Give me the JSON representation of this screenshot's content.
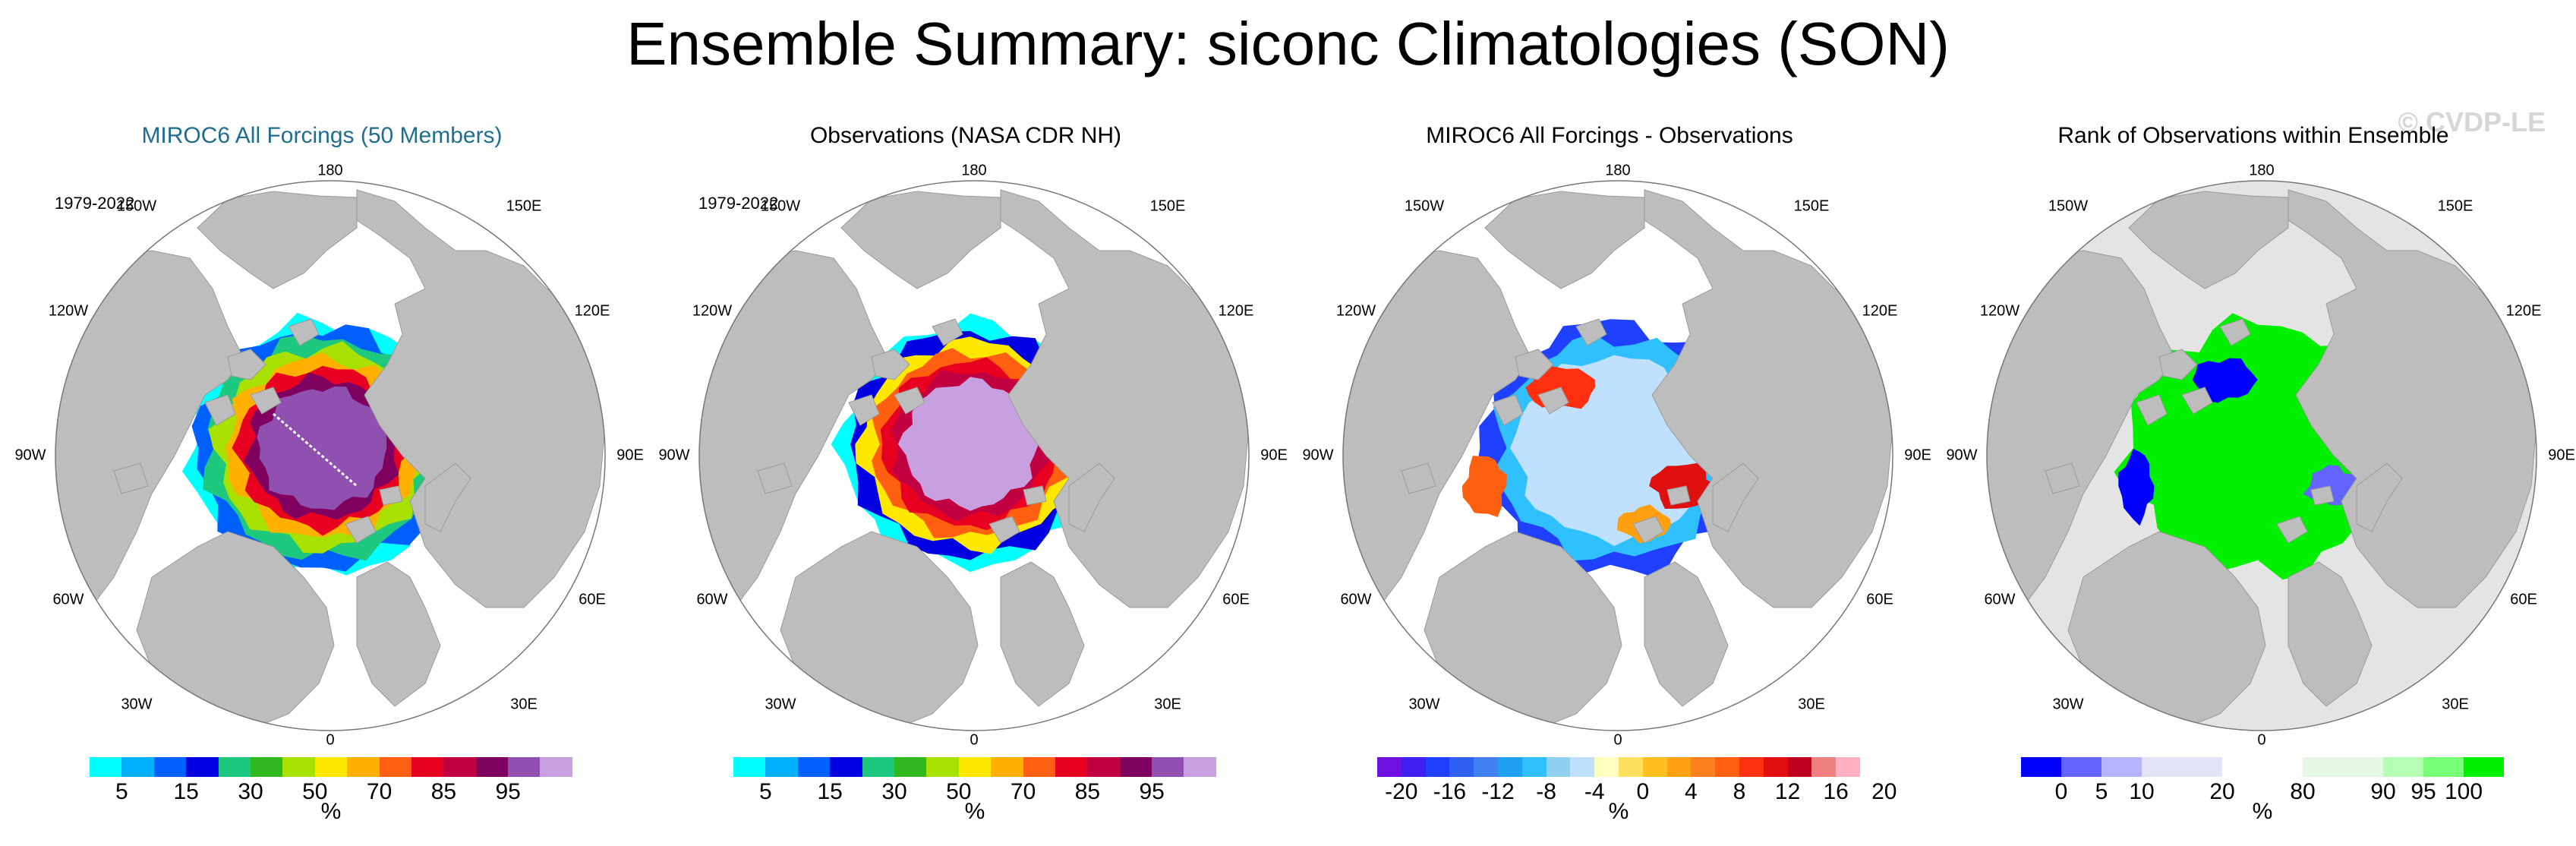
{
  "title": "Ensemble Summary: siconc Climatologies (SON)",
  "watermark": "© CVDP-LE",
  "longitude_labels": [
    "180",
    "150E",
    "120E",
    "90E",
    "60E",
    "30E",
    "0",
    "30W",
    "60W",
    "90W",
    "120W",
    "150W"
  ],
  "panels": [
    {
      "title": "MIROC6 All Forcings (50 Members)",
      "period": "1979-2022",
      "colorbar": {
        "colors": [
          "#00ffff",
          "#00b0ff",
          "#0060ff",
          "#0000e0",
          "#1ec87e",
          "#30b820",
          "#a8e000",
          "#ffe800",
          "#ffb000",
          "#ff6010",
          "#e80020",
          "#c00040",
          "#800060",
          "#9050b0",
          "#c8a0e0"
        ],
        "tick_labels": [
          "5",
          "15",
          "30",
          "50",
          "70",
          "85",
          "95"
        ],
        "unit": "%"
      }
    },
    {
      "title": "Observations (NASA CDR NH)",
      "period": "1979-2022",
      "colorbar": {
        "colors": [
          "#00ffff",
          "#00b0ff",
          "#0060ff",
          "#0000e0",
          "#1ec87e",
          "#30b820",
          "#a8e000",
          "#ffe800",
          "#ffb000",
          "#ff6010",
          "#e80020",
          "#c00040",
          "#800060",
          "#9050b0",
          "#c8a0e0"
        ],
        "tick_labels": [
          "5",
          "15",
          "30",
          "50",
          "70",
          "85",
          "95"
        ],
        "unit": "%"
      }
    },
    {
      "title": "MIROC6 All Forcings - Observations",
      "period": "",
      "colorbar": {
        "colors": [
          "#7010e0",
          "#4020f0",
          "#2040ff",
          "#3060f0",
          "#4080f0",
          "#20a0f0",
          "#30c0ff",
          "#90d0f0",
          "#c0e0ff",
          "#ffffc0",
          "#ffe060",
          "#ffc020",
          "#ffa010",
          "#ff8020",
          "#ff6010",
          "#ff3010",
          "#e01010",
          "#c00020",
          "#f08080",
          "#ffb0c0"
        ],
        "tick_labels": [
          "-20",
          "-16",
          "-12",
          "-8",
          "-4",
          "0",
          "4",
          "8",
          "12",
          "16",
          "20"
        ],
        "unit": "%"
      }
    },
    {
      "title": "Rank of Observations within Ensemble",
      "period": "",
      "colorbar": {
        "colors": [
          "#0000ff",
          "#6464ff",
          "#b4b4ff",
          "#e4e4f8",
          "#e4e4f8",
          "#ffffff",
          "#ffffff",
          "#e4f8e4",
          "#e4f8e4",
          "#b4ffb4",
          "#78ff78",
          "#00f000"
        ],
        "tick_labels": [
          "0",
          "5",
          "10",
          "20",
          "80",
          "90",
          "95",
          "100"
        ],
        "unit": "%"
      }
    }
  ]
}
